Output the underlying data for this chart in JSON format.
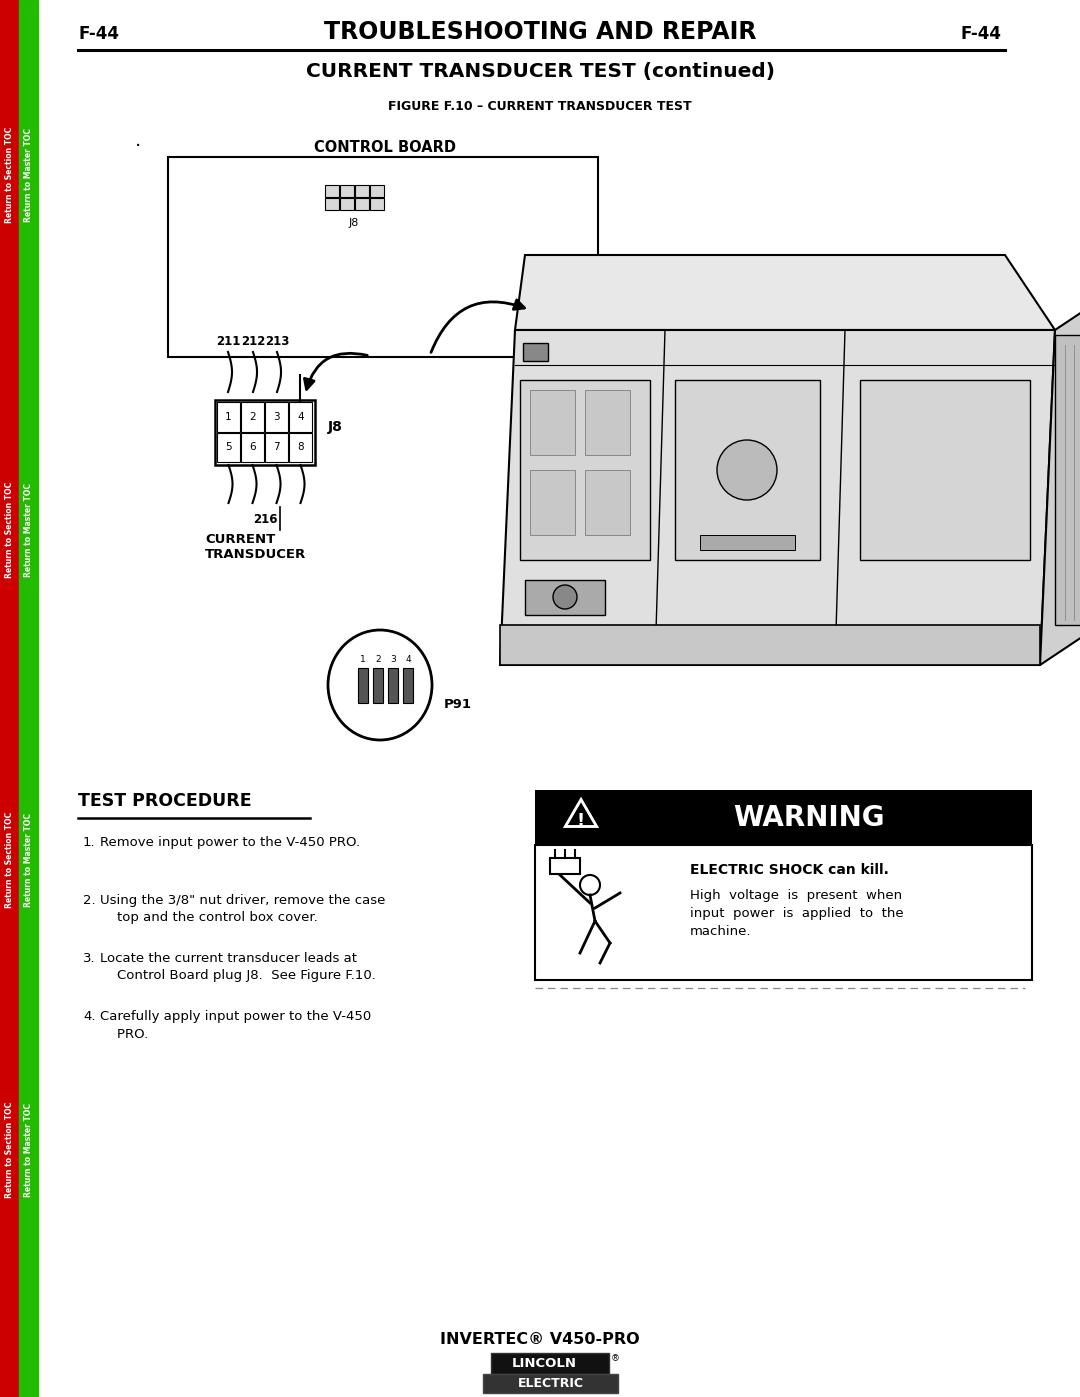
{
  "page_bg": "#ffffff",
  "sidebar_red": "#cc0000",
  "sidebar_green": "#22bb00",
  "header_title": "TROUBLESHOOTING AND REPAIR",
  "header_page": "F-44",
  "subheader": "CURRENT TRANSDUCER TEST (continued)",
  "figure_caption": "FIGURE F.10 – CURRENT TRANSDUCER TEST",
  "control_board_label": "CONTROL BOARD",
  "j8_inner_label": "J8",
  "j8_conn_label": "J8",
  "p91_label": "P91",
  "current_transducer_label": "CURRENT\nTRANSDUCER",
  "pin_labels_above": [
    "211",
    "212",
    "213"
  ],
  "pin_row1": [
    "1",
    "2",
    "3",
    "4"
  ],
  "pin_row2": [
    "5",
    "6",
    "7",
    "8"
  ],
  "pin_216": "216",
  "p91_pins": [
    "1",
    "2",
    "3",
    "4"
  ],
  "test_procedure_title": "TEST PROCEDURE",
  "test_steps": [
    [
      "1.",
      "Remove input power to the V-450 PRO."
    ],
    [
      "2.",
      "Using the 3/8\" nut driver, remove the case\n    top and the control box cover."
    ],
    [
      "3.",
      "Locate the current transducer leads at\n    Control Board plug J8.  See Figure F.10."
    ],
    [
      "4.",
      "Carefully apply input power to the V-450\n    PRO."
    ]
  ],
  "warning_title": "WARNING",
  "warning_bold": "ELECTRIC SHOCK can kill.",
  "warning_body": "High  voltage  is  present  when\ninput  power  is  applied  to  the\nmachine.",
  "footer_model": "INVERTEC® V450-PRO",
  "sidebar_labels": [
    "Return to Section TOC",
    "Return to Master TOC",
    "Return to Section TOC",
    "Return to Master TOC",
    "Return to Section TOC",
    "Return to Master TOC",
    "Return to Section TOC",
    "Return to Master TOC"
  ],
  "sidebar_y_positions": [
    175,
    175,
    530,
    530,
    860,
    860,
    1150,
    1150
  ],
  "sidebar_x_positions": [
    10,
    29,
    10,
    29,
    10,
    29,
    10,
    29
  ]
}
